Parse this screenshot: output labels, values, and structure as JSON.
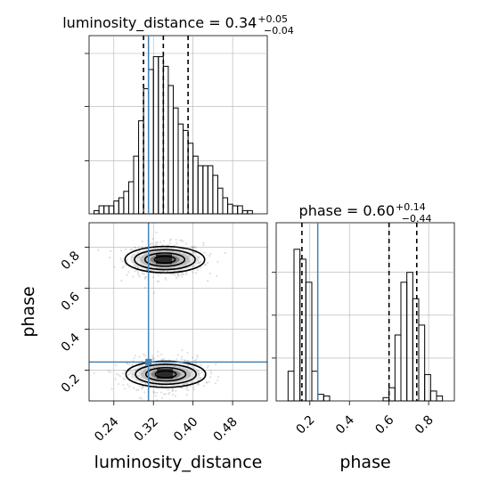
{
  "chart_data": [
    {
      "type": "histogram",
      "panel": "luminosity_distance marginal",
      "title_main": "luminosity_distance = 0.34",
      "title_sup": "+0.05",
      "title_sub": "−0.04",
      "x": [
        0.195,
        0.205,
        0.215,
        0.225,
        0.235,
        0.245,
        0.255,
        0.265,
        0.275,
        0.285,
        0.295,
        0.305,
        0.315,
        0.325,
        0.335,
        0.345,
        0.355,
        0.365,
        0.375,
        0.385,
        0.395,
        0.405,
        0.415,
        0.425,
        0.435,
        0.445,
        0.455,
        0.465,
        0.475,
        0.485,
        0.495,
        0.505,
        0.515,
        0.525,
        0.535,
        0.545
      ],
      "values": [
        0,
        0.02,
        0.05,
        0.05,
        0.05,
        0.08,
        0.1,
        0.14,
        0.2,
        0.36,
        0.58,
        0.78,
        0.9,
        0.98,
        0.98,
        0.92,
        0.8,
        0.66,
        0.56,
        0.52,
        0.44,
        0.36,
        0.3,
        0.3,
        0.3,
        0.24,
        0.16,
        0.1,
        0.06,
        0.05,
        0.05,
        0.02,
        0.02,
        0.0,
        0.0,
        0.0
      ],
      "xlim": [
        0.19,
        0.55
      ],
      "quantile_lines": [
        0.3,
        0.34,
        0.39
      ],
      "truth": 0.31,
      "grid": true
    },
    {
      "type": "scatter",
      "panel": "phase vs luminosity_distance 2D density",
      "xlabel": "luminosity_distance",
      "ylabel": "phase",
      "xlim": [
        0.19,
        0.55
      ],
      "ylim": [
        0.05,
        0.92
      ],
      "x_ticks": [
        "0.24",
        "0.32",
        "0.40",
        "0.48"
      ],
      "x_tick_values": [
        0.24,
        0.32,
        0.4,
        0.48
      ],
      "y_ticks": [
        "0.2",
        "0.4",
        "0.6",
        "0.8"
      ],
      "y_tick_values": [
        0.2,
        0.4,
        0.6,
        0.8
      ],
      "modes": [
        {
          "cx": 0.343,
          "cy": 0.74,
          "sx": 0.035,
          "sy": 0.045
        },
        {
          "cx": 0.345,
          "cy": 0.18,
          "sx": 0.035,
          "sy": 0.045
        }
      ],
      "truth": {
        "x": 0.31,
        "y": 0.24
      },
      "grid": true
    },
    {
      "type": "histogram",
      "panel": "phase marginal",
      "title_main": "phase = 0.60",
      "title_sup": "+0.14",
      "title_sub": "−0.44",
      "xlabel": "phase",
      "x": [
        0.045,
        0.075,
        0.105,
        0.135,
        0.165,
        0.195,
        0.225,
        0.255,
        0.285,
        0.315,
        0.345,
        0.375,
        0.405,
        0.435,
        0.465,
        0.495,
        0.525,
        0.555,
        0.585,
        0.615,
        0.645,
        0.675,
        0.705,
        0.735,
        0.765,
        0.795,
        0.825,
        0.855,
        0.885,
        0.915
      ],
      "values": [
        0,
        0,
        0.18,
        0.92,
        0.86,
        0.72,
        0.18,
        0.04,
        0.03,
        0,
        0,
        0,
        0,
        0,
        0,
        0,
        0,
        0,
        0.02,
        0.08,
        0.4,
        0.72,
        0.78,
        0.62,
        0.46,
        0.16,
        0.06,
        0.03,
        0,
        0
      ],
      "xlim": [
        0.03,
        0.93
      ],
      "x_ticks": [
        "0.2",
        "0.4",
        "0.6",
        "0.8"
      ],
      "x_tick_values": [
        0.2,
        0.4,
        0.6,
        0.8
      ],
      "quantile_lines": [
        0.16,
        0.6,
        0.74
      ],
      "truth": 0.24,
      "grid": true
    }
  ],
  "colors": {
    "hist_line": "#000000",
    "quantile_line": "#000000",
    "truth_line": "#4682b4",
    "grid": "#b0b0b0",
    "points": "#808080"
  }
}
